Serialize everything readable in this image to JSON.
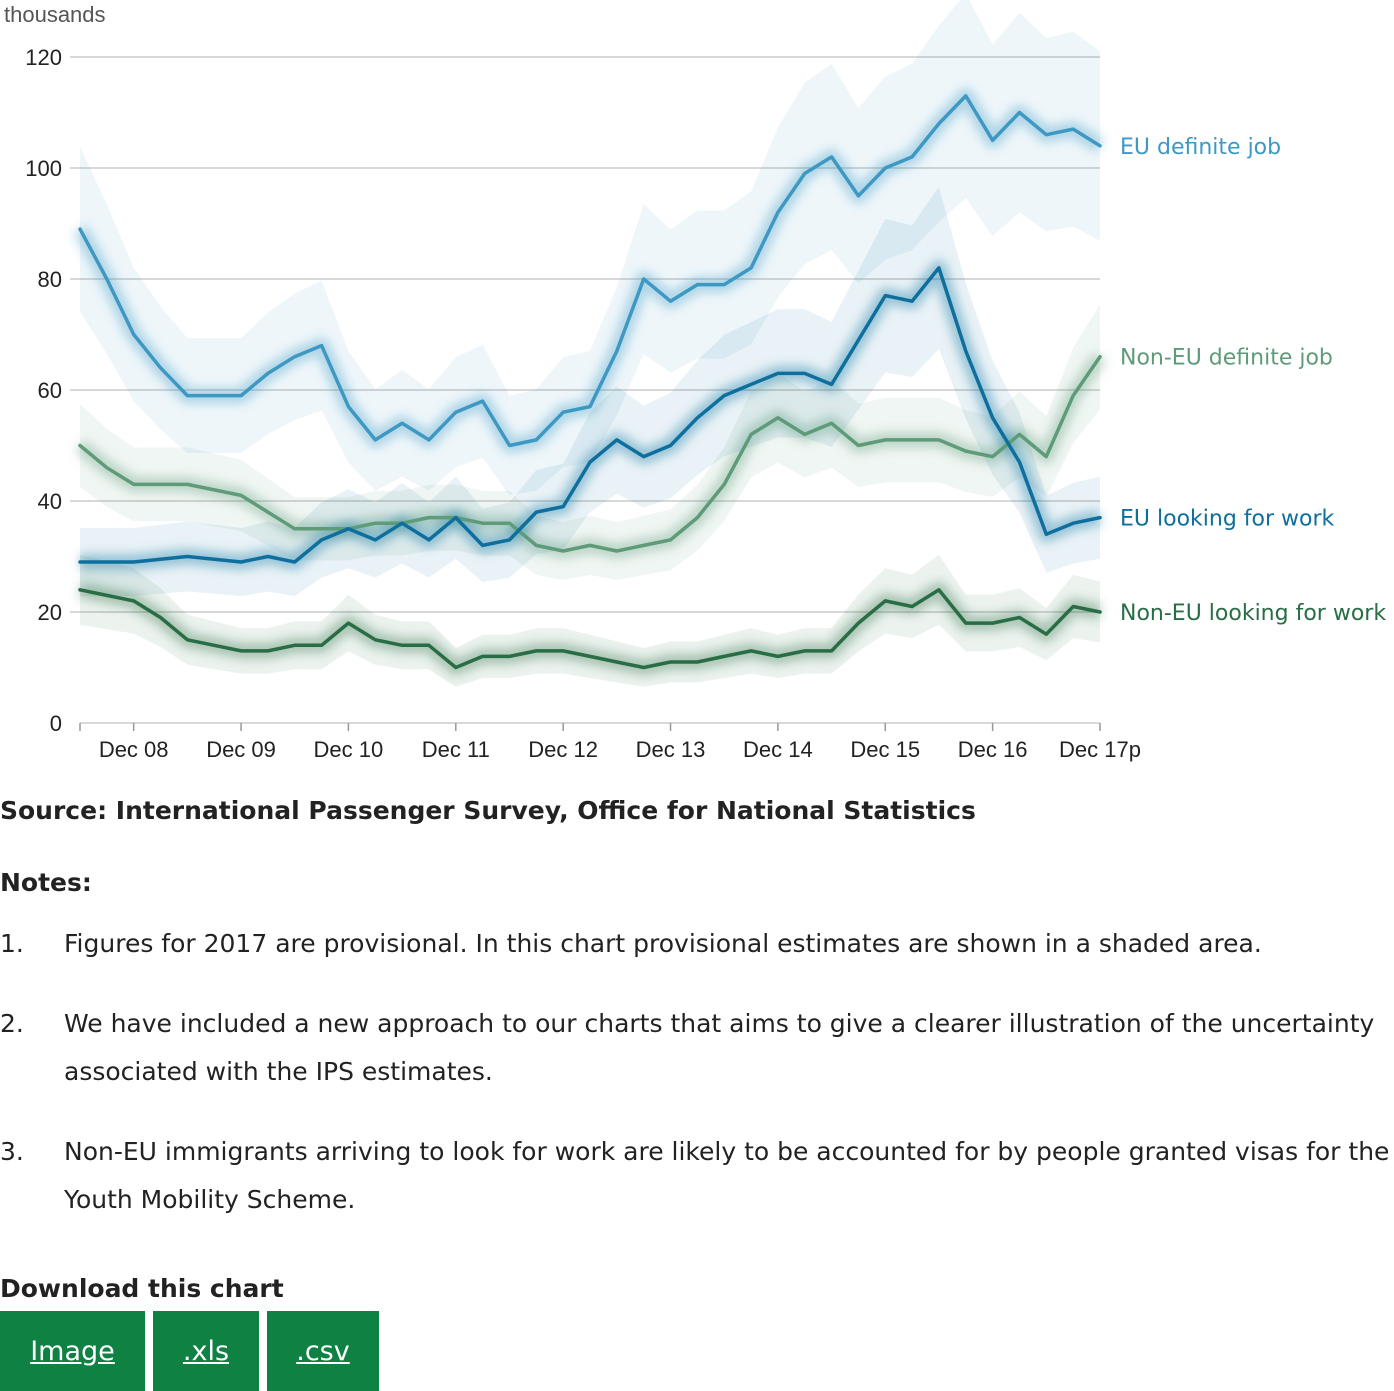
{
  "chart_data": {
    "type": "line",
    "unit_label": "thousands",
    "ylim": [
      0,
      120
    ],
    "yticks": [
      0,
      20,
      40,
      60,
      80,
      100,
      120
    ],
    "x_tick_labels": [
      "Dec 08",
      "Dec 09",
      "Dec 10",
      "Dec 11",
      "Dec 12",
      "Dec 13",
      "Dec 14",
      "Dec 15",
      "Dec 16",
      "Dec 17p"
    ],
    "grid": true,
    "colors": {
      "eu_job": "#3d98c3",
      "eu_look": "#0e6f9e",
      "noneu_job": "#5e9b78",
      "noneu_look": "#286d45"
    },
    "series": [
      {
        "name": "EU definite job",
        "color": "#3d98c3",
        "values": [
          89,
          80,
          70,
          64,
          59,
          59,
          59,
          63,
          66,
          68,
          57,
          51,
          54,
          51,
          56,
          58,
          50,
          51,
          56,
          57,
          67,
          80,
          76,
          79,
          79,
          82,
          92,
          99,
          102,
          95,
          100,
          102,
          108,
          113,
          105,
          110,
          106,
          107,
          104
        ]
      },
      {
        "name": "Non-EU definite job",
        "color": "#5e9b78",
        "values": [
          50,
          46,
          43,
          43,
          43,
          42,
          41,
          38,
          35,
          35,
          35,
          36,
          36,
          37,
          37,
          36,
          36,
          32,
          31,
          32,
          31,
          32,
          33,
          37,
          43,
          52,
          55,
          52,
          54,
          50,
          51,
          51,
          51,
          49,
          48,
          52,
          48,
          59,
          66
        ]
      },
      {
        "name": "EU looking for work",
        "color": "#0e6f9e",
        "values": [
          29,
          29,
          29,
          29.5,
          30,
          29.5,
          29,
          30,
          29,
          33,
          35,
          33,
          36,
          33,
          37,
          32,
          33,
          38,
          39,
          47,
          51,
          48,
          50,
          55,
          59,
          61,
          63,
          63,
          61,
          69,
          77,
          76,
          82,
          67,
          55,
          47,
          34,
          36,
          37
        ]
      },
      {
        "name": "Non-EU looking for work",
        "color": "#286d45",
        "values": [
          24,
          23,
          22,
          19,
          15,
          14,
          13,
          13,
          14,
          14,
          18,
          15,
          14,
          14,
          10,
          12,
          12,
          13,
          13,
          12,
          11,
          10,
          11,
          11,
          12,
          13,
          12,
          13,
          13,
          18,
          22,
          21,
          24,
          18,
          18,
          19,
          16,
          21,
          20
        ]
      }
    ]
  },
  "source_text": "Source: International Passenger Survey, Office for National Statistics",
  "notes": {
    "title": "Notes:",
    "items": [
      {
        "num": "1.",
        "text": "Figures for 2017 are provisional. In this chart provisional estimates are shown in a shaded area."
      },
      {
        "num": "2.",
        "text": "We have included a new approach to our charts that aims to give a clearer illustration of the uncertainty associated with the IPS estimates."
      },
      {
        "num": "3.",
        "text": "Non-EU immigrants arriving to look for work are likely to be accounted for by people granted visas for the Youth Mobility Scheme."
      }
    ]
  },
  "download": {
    "title": "Download this chart",
    "buttons": [
      "Image",
      ".xls",
      ".csv"
    ],
    "button_color": "#0f8243"
  }
}
